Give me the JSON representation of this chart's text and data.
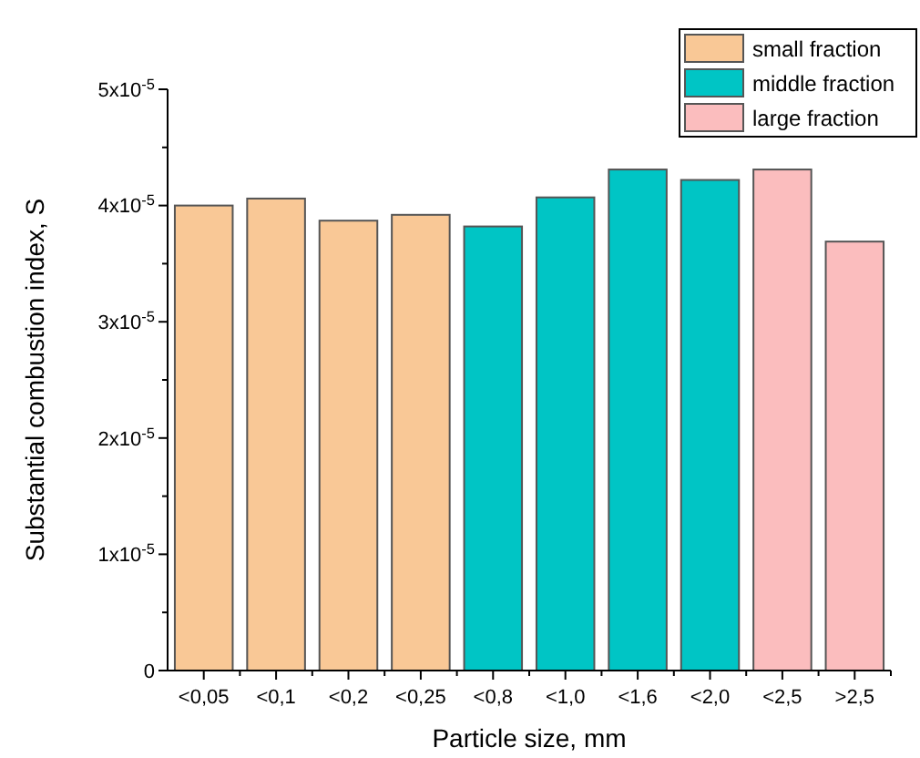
{
  "chart_data": {
    "type": "bar",
    "xlabel": "Particle size, mm",
    "ylabel": "Substantial combustion index, S",
    "categories": [
      "<0,05",
      "<0,1",
      "<0,2",
      "<0,25",
      "<0,8",
      "<1,0",
      "<1,6",
      "<2,0",
      "<2,5",
      ">2,5"
    ],
    "series": [
      {
        "name": "small fraction",
        "color": "#f9c896",
        "values": [
          4e-05,
          4.06e-05,
          3.87e-05,
          3.92e-05,
          null,
          null,
          null,
          null,
          null,
          null
        ]
      },
      {
        "name": "middle fraction",
        "color": "#00c5c5",
        "values": [
          null,
          null,
          null,
          null,
          3.82e-05,
          4.07e-05,
          4.31e-05,
          4.22e-05,
          null,
          null
        ]
      },
      {
        "name": "large fraction",
        "color": "#fbbdbe",
        "values": [
          null,
          null,
          null,
          null,
          null,
          null,
          null,
          null,
          4.31e-05,
          3.69e-05
        ]
      }
    ],
    "ylim": [
      0,
      5e-05
    ],
    "yticks": [
      0,
      {
        "value": 5e-06,
        "label": null
      },
      {
        "value": 1e-05,
        "label": "1x10$^{-5}$"
      },
      {
        "value": 1.5e-05,
        "label": null
      },
      {
        "value": 2e-05,
        "label": "2x10$^{-5}$"
      },
      {
        "value": 2.5e-05,
        "label": null
      },
      {
        "value": 3e-05,
        "label": "3x10$^{-5}$"
      },
      {
        "value": 3.5e-05,
        "label": null
      },
      {
        "value": 4e-05,
        "label": "4x10$^{-5}$"
      },
      {
        "value": 4.5e-05,
        "label": null
      },
      {
        "value": 5e-05,
        "label": "5x10$^{-5}$"
      }
    ],
    "grid": false,
    "legend": "top right"
  }
}
